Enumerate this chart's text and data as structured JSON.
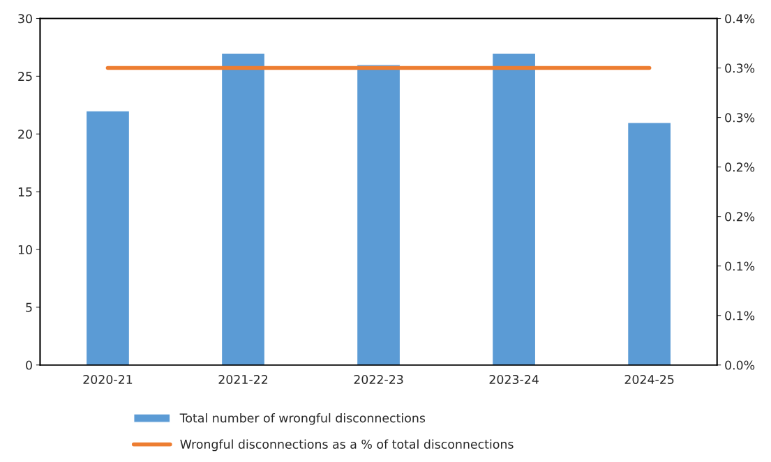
{
  "chart_data": {
    "type": "bar",
    "categories": [
      "2020-21",
      "2021-22",
      "2022-23",
      "2023-24",
      "2024-25"
    ],
    "series": [
      {
        "name": "Total number of wrongful disconnections",
        "color": "#5b9bd5",
        "values": [
          22,
          27,
          26,
          27,
          21
        ]
      },
      {
        "name": "Wrongful disconnections as a % of total disconnections",
        "type": "line",
        "axis": "y2",
        "color": "#ed7d31",
        "values": [
          0.3,
          0.3,
          0.3,
          0.3,
          0.3
        ]
      }
    ],
    "ylim": [
      0,
      30
    ],
    "yticks": [
      0,
      5,
      10,
      15,
      20,
      25,
      30
    ],
    "y2lim": [
      0,
      0.35
    ],
    "y2ticks": [
      {
        "value": 0,
        "label": "0.0%"
      },
      {
        "value": 0.05,
        "label": "0.1%"
      },
      {
        "value": 0.1,
        "label": "0.1%"
      },
      {
        "value": 0.15,
        "label": "0.2%"
      },
      {
        "value": 0.2,
        "label": "0.2%"
      },
      {
        "value": 0.25,
        "label": "0.3%"
      },
      {
        "value": 0.3,
        "label": "0.3%"
      },
      {
        "value": 0.35,
        "label": "0.4%"
      }
    ],
    "grid": false,
    "legend": "bottom",
    "marker": "none",
    "line_style": "solid"
  }
}
